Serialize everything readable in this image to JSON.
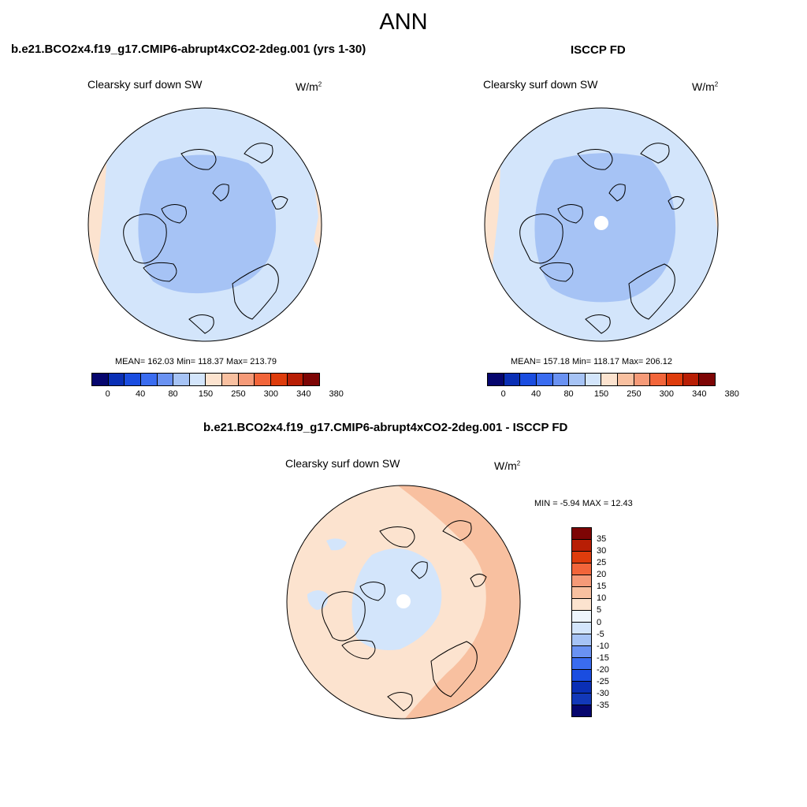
{
  "title": "ANN",
  "panels": [
    {
      "heading": "b.e21.BCO2x4.f19_g17.CMIP6-abrupt4xCO2-2deg.001 (yrs 1-30)",
      "field": "Clearsky surf down SW",
      "units": "W/m",
      "units_exp": "2",
      "stats": "MEAN= 162.03  Min= 118.37  Max= 213.79"
    },
    {
      "heading": "ISCCP FD",
      "field": "Clearsky surf down SW",
      "units": "W/m",
      "units_exp": "2",
      "stats": "MEAN= 157.18  Min= 118.17  Max= 206.12"
    }
  ],
  "diff_panel": {
    "heading": "b.e21.BCO2x4.f19_g17.CMIP6-abrupt4xCO2-2deg.001 - ISCCP FD",
    "field": "Clearsky surf down SW",
    "units": "W/m",
    "units_exp": "2",
    "stats": "MIN =  -5.94 MAX =  12.43"
  },
  "abs_colorbar": {
    "colors": [
      "#06066e",
      "#0a2fb5",
      "#1a4de0",
      "#3a6cf0",
      "#6a92f2",
      "#a6c3f5",
      "#d3e5fb",
      "#fce3cf",
      "#f8c0a0",
      "#f59a78",
      "#f2653a",
      "#de3c0c",
      "#b81e05",
      "#7d0505"
    ],
    "tick_labels": [
      "0",
      "40",
      "80",
      "150",
      "250",
      "300",
      "340",
      "380"
    ]
  },
  "diff_colorbar": {
    "colors": [
      "#7d0505",
      "#b81e05",
      "#de3c0c",
      "#f2653a",
      "#f59a78",
      "#f8c0a0",
      "#fce3cf",
      "#eef5fc",
      "#d3e5fb",
      "#a6c3f5",
      "#6a92f2",
      "#3a6cf0",
      "#1a4de0",
      "#0a2fb5",
      "#1238b8",
      "#06066e"
    ],
    "tick_labels": [
      "35",
      "30",
      "25",
      "20",
      "15",
      "10",
      "5",
      "0",
      "-5",
      "-10",
      "-15",
      "-20",
      "-25",
      "-30",
      "-35"
    ]
  },
  "map_colors": {
    "inner": "#a6c3f5",
    "outer": "#d3e5fb",
    "edge": "#fce3cf",
    "diff_base": "#fce3cf",
    "diff_warm": "#f8c0a0",
    "diff_cool": "#d3e5fb"
  }
}
